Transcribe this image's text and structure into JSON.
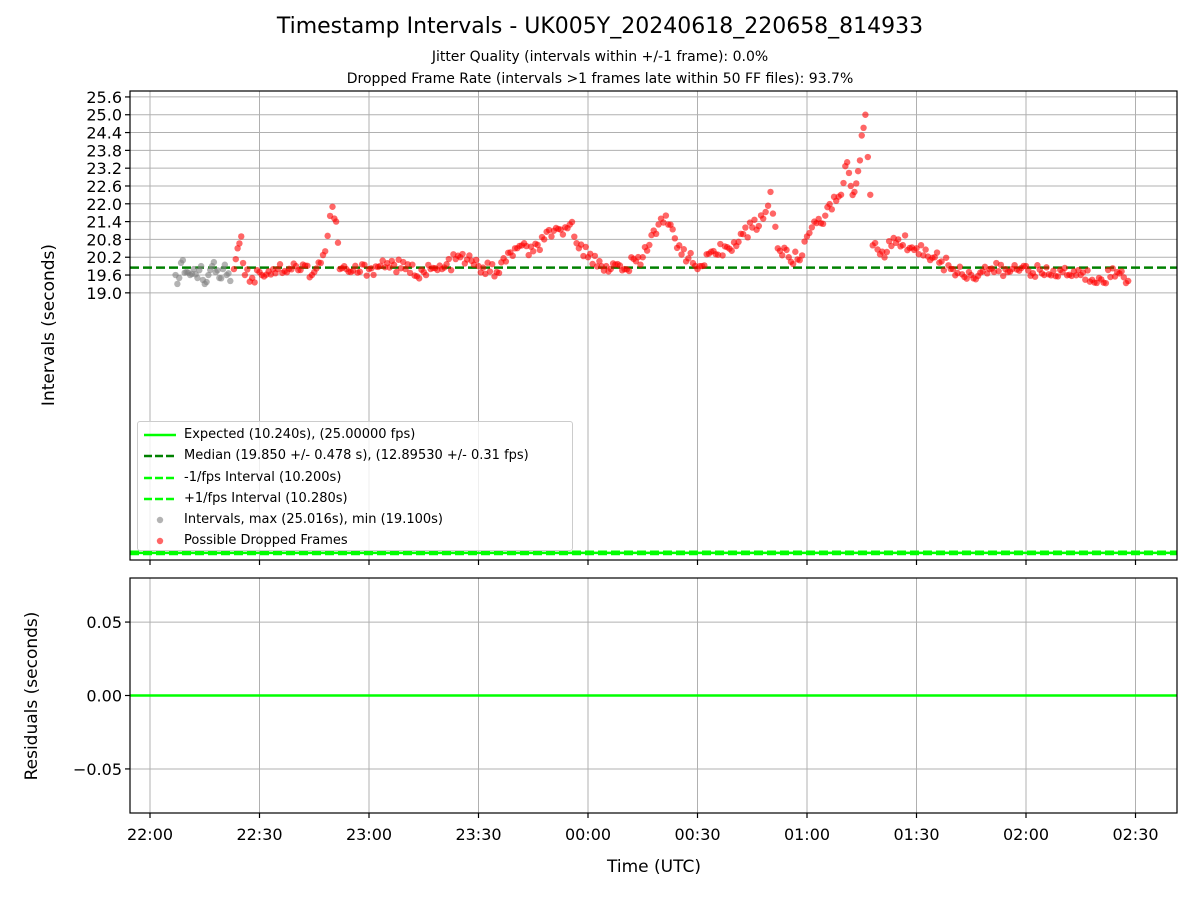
{
  "figure": {
    "title": "Timestamp Intervals - UK005Y_20240618_220658_814933",
    "subtitle_1": "Jitter Quality (intervals within +/-1 frame): 0.0%",
    "subtitle_2": "Dropped Frame Rate (intervals >1 frames late within 50 FF files): 93.7%"
  },
  "colors": {
    "expected": "#00ff00",
    "median": "#008000",
    "interval_points": "#808080",
    "dropped_points": "#ff0000",
    "grid": "#b0b0b0"
  },
  "chart_data": [
    {
      "type": "scatter",
      "panel": "intervals",
      "ylabel": "Intervals (seconds)",
      "xlabel": "",
      "y_tick_labels": [
        "19.0",
        "19.6",
        "20.2",
        "20.8",
        "21.4",
        "22.0",
        "22.6",
        "23.2",
        "23.8",
        "24.4",
        "25.0",
        "25.6"
      ],
      "ylim": [
        10.0,
        25.8
      ],
      "grid": true,
      "legend_placement": "lower-left",
      "reference_lines": [
        {
          "name": "Expected (10.240s), (25.00000 fps)",
          "y": 10.24,
          "style": "solid",
          "color": "#00ff00"
        },
        {
          "name": "Median (19.850 +/- 0.478 s), (12.89530 +/- 0.31 fps)",
          "y": 19.85,
          "style": "dashed",
          "color": "#008000"
        },
        {
          "name": "-1/fps Interval (10.200s)",
          "y": 10.2,
          "style": "dashed",
          "color": "#00ff00"
        },
        {
          "name": "+1/fps Interval (10.280s)",
          "y": 10.28,
          "style": "dashed",
          "color": "#00ff00"
        }
      ],
      "series": [
        {
          "name": "Intervals, max (25.016s), min (19.100s)",
          "color": "#808080",
          "x": [
            "22:07",
            "22:08",
            "22:09",
            "22:10",
            "22:11",
            "22:12",
            "22:13",
            "22:14",
            "22:15",
            "22:16",
            "22:17",
            "22:18",
            "22:19",
            "22:20",
            "22:21",
            "22:22"
          ],
          "values": [
            19.6,
            19.5,
            20.1,
            19.7,
            19.6,
            19.8,
            19.5,
            19.9,
            19.3,
            19.6,
            19.9,
            19.7,
            19.5,
            19.8,
            19.6,
            19.4
          ]
        },
        {
          "name": "Possible Dropped Frames",
          "color": "#ff0000",
          "x": [
            "22:23",
            "22:24",
            "22:25",
            "22:26",
            "22:28",
            "22:30",
            "22:35",
            "22:40",
            "22:45",
            "22:48",
            "22:50",
            "22:51",
            "22:52",
            "22:55",
            "23:00",
            "23:05",
            "23:10",
            "23:15",
            "23:20",
            "23:25",
            "23:30",
            "23:35",
            "23:40",
            "23:45",
            "23:48",
            "23:50",
            "23:55",
            "00:00",
            "00:05",
            "00:10",
            "00:15",
            "00:18",
            "00:20",
            "00:22",
            "00:25",
            "00:30",
            "00:35",
            "00:40",
            "00:45",
            "00:48",
            "00:50",
            "00:52",
            "00:55",
            "00:58",
            "01:00",
            "01:02",
            "01:05",
            "01:08",
            "01:10",
            "01:11",
            "01:12",
            "01:13",
            "01:14",
            "01:15",
            "01:16",
            "01:18",
            "01:20",
            "01:25",
            "01:30",
            "01:35",
            "01:40",
            "01:45",
            "01:50",
            "01:55",
            "02:00",
            "02:05",
            "02:10",
            "02:15",
            "02:20",
            "02:25",
            "02:28"
          ],
          "values": [
            19.8,
            20.5,
            20.9,
            19.6,
            19.5,
            19.7,
            19.8,
            19.9,
            19.7,
            20.4,
            21.9,
            21.4,
            19.8,
            19.7,
            19.8,
            20.0,
            19.8,
            19.7,
            19.8,
            20.2,
            19.9,
            19.7,
            20.5,
            20.4,
            20.8,
            20.9,
            21.3,
            20.2,
            19.9,
            19.8,
            20.2,
            21.1,
            21.5,
            21.3,
            20.6,
            19.8,
            20.3,
            20.7,
            21.2,
            21.5,
            22.4,
            20.5,
            20.2,
            20.1,
            20.9,
            21.4,
            21.6,
            22.1,
            22.7,
            23.4,
            22.6,
            22.4,
            23.1,
            24.3,
            25.0,
            20.6,
            20.3,
            20.8,
            20.5,
            20.2,
            19.8,
            19.6,
            19.8,
            19.7,
            19.9,
            19.6,
            19.7,
            19.6,
            19.5,
            19.7,
            19.4
          ]
        }
      ]
    },
    {
      "type": "line",
      "panel": "residuals",
      "ylabel": "Residuals (seconds)",
      "xlabel": "Time (UTC)",
      "y_tick_labels": [
        "0.05",
        "0.00",
        "−0.05"
      ],
      "ylim": [
        -0.08,
        0.08
      ],
      "grid": true,
      "x_tick_labels": [
        "22:00",
        "22:30",
        "23:00",
        "23:30",
        "00:00",
        "00:30",
        "01:00",
        "01:30",
        "02:00",
        "02:30"
      ],
      "series": [
        {
          "color": "#00ff00",
          "x": [
            "21:55",
            "02:35"
          ],
          "values": [
            0.0,
            0.0
          ]
        }
      ]
    }
  ]
}
